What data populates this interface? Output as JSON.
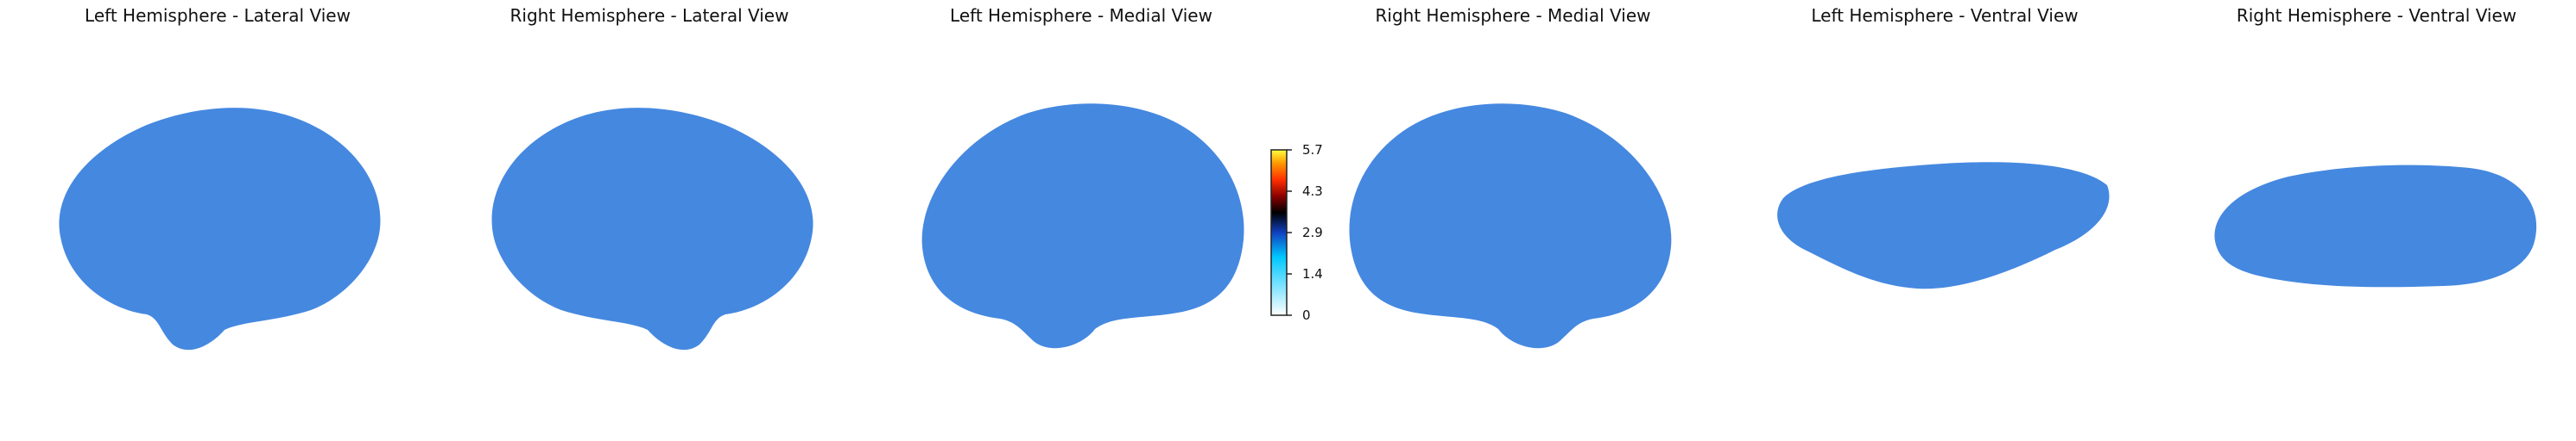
{
  "panels": [
    {
      "title": "Left Hemisphere - Lateral View"
    },
    {
      "title": "Right Hemisphere - Lateral View"
    },
    {
      "title": "Left Hemisphere - Medial View"
    },
    {
      "title": "Right Hemisphere - Medial View"
    },
    {
      "title": "Left Hemisphere - Ventral View"
    },
    {
      "title": "Right Hemisphere - Ventral View"
    }
  ],
  "colorbar": {
    "ticks": [
      "5.7",
      "4.3",
      "2.9",
      "1.4",
      "0"
    ],
    "colormap": [
      "#ffffff",
      "#00c8ff",
      "#1040c0",
      "#000000",
      "#8b0000",
      "#ff3000",
      "#ff9a00",
      "#ffff40"
    ]
  }
}
